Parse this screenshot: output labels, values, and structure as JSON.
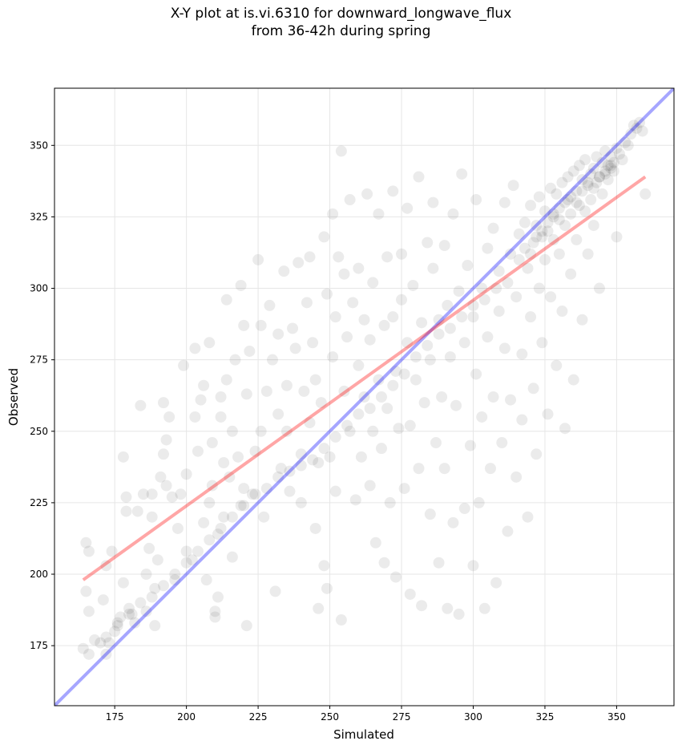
{
  "chart_data": {
    "type": "scatter",
    "title_lines": [
      "X-Y plot at is.vi.6310 for downward_longwave_flux",
      "from 36-42h during spring"
    ],
    "xlabel": "Simulated",
    "ylabel": "Observed",
    "xlim": [
      154,
      370
    ],
    "ylim": [
      154,
      370
    ],
    "xticks": [
      175,
      200,
      225,
      250,
      275,
      300,
      325,
      350
    ],
    "yticks": [
      175,
      200,
      225,
      250,
      275,
      300,
      325,
      350
    ],
    "grid": true,
    "point_color": "#000000",
    "point_alpha": 0.08,
    "reference_lines": [
      {
        "type": "one_to_one",
        "color": "#0000ff",
        "x": [
          154,
          370
        ],
        "y": [
          154,
          370
        ]
      },
      {
        "type": "regression_fit",
        "color": "#ff0000",
        "x": [
          164,
          360
        ],
        "y": [
          198,
          339
        ]
      }
    ],
    "points": [
      [
        164,
        174
      ],
      [
        165,
        211
      ],
      [
        166,
        208
      ],
      [
        165,
        194
      ],
      [
        166,
        187
      ],
      [
        166,
        172
      ],
      [
        168,
        177
      ],
      [
        170,
        176
      ],
      [
        172,
        172
      ],
      [
        173,
        176
      ],
      [
        171,
        191
      ],
      [
        172,
        203
      ],
      [
        174,
        208
      ],
      [
        175,
        180
      ],
      [
        176,
        183
      ],
      [
        177,
        185
      ],
      [
        178,
        197
      ],
      [
        178,
        241
      ],
      [
        179,
        227
      ],
      [
        179,
        222
      ],
      [
        180,
        188
      ],
      [
        181,
        186
      ],
      [
        182,
        183
      ],
      [
        183,
        222
      ],
      [
        184,
        259
      ],
      [
        185,
        228
      ],
      [
        186,
        200
      ],
      [
        186,
        187
      ],
      [
        187,
        209
      ],
      [
        188,
        220
      ],
      [
        188,
        228
      ],
      [
        189,
        195
      ],
      [
        189,
        182
      ],
      [
        190,
        205
      ],
      [
        191,
        234
      ],
      [
        192,
        260
      ],
      [
        192,
        242
      ],
      [
        193,
        231
      ],
      [
        193,
        247
      ],
      [
        194,
        255
      ],
      [
        195,
        227
      ],
      [
        196,
        198
      ],
      [
        197,
        216
      ],
      [
        198,
        228
      ],
      [
        199,
        273
      ],
      [
        200,
        208
      ],
      [
        200,
        235
      ],
      [
        202,
        205
      ],
      [
        203,
        255
      ],
      [
        204,
        243
      ],
      [
        203,
        279
      ],
      [
        205,
        261
      ],
      [
        206,
        266
      ],
      [
        206,
        218
      ],
      [
        207,
        198
      ],
      [
        208,
        225
      ],
      [
        208,
        281
      ],
      [
        209,
        246
      ],
      [
        209,
        231
      ],
      [
        210,
        187
      ],
      [
        210,
        185
      ],
      [
        211,
        192
      ],
      [
        211,
        214
      ],
      [
        212,
        262
      ],
      [
        212,
        255
      ],
      [
        213,
        239
      ],
      [
        213,
        220
      ],
      [
        214,
        268
      ],
      [
        214,
        296
      ],
      [
        215,
        234
      ],
      [
        216,
        250
      ],
      [
        216,
        206
      ],
      [
        217,
        275
      ],
      [
        218,
        241
      ],
      [
        219,
        301
      ],
      [
        219,
        224
      ],
      [
        220,
        287
      ],
      [
        220,
        230
      ],
      [
        221,
        263
      ],
      [
        221,
        182
      ],
      [
        222,
        278
      ],
      [
        223,
        228
      ],
      [
        224,
        243
      ],
      [
        225,
        310
      ],
      [
        226,
        287
      ],
      [
        226,
        250
      ],
      [
        227,
        220
      ],
      [
        228,
        264
      ],
      [
        229,
        294
      ],
      [
        230,
        275
      ],
      [
        231,
        194
      ],
      [
        232,
        256
      ],
      [
        232,
        284
      ],
      [
        233,
        237
      ],
      [
        234,
        306
      ],
      [
        235,
        250
      ],
      [
        235,
        266
      ],
      [
        236,
        229
      ],
      [
        237,
        286
      ],
      [
        238,
        279
      ],
      [
        239,
        309
      ],
      [
        240,
        242
      ],
      [
        240,
        225
      ],
      [
        241,
        264
      ],
      [
        242,
        295
      ],
      [
        243,
        311
      ],
      [
        243,
        253
      ],
      [
        244,
        281
      ],
      [
        245,
        216
      ],
      [
        245,
        268
      ],
      [
        246,
        239
      ],
      [
        246,
        188
      ],
      [
        247,
        260
      ],
      [
        248,
        318
      ],
      [
        248,
        203
      ],
      [
        249,
        298
      ],
      [
        249,
        195
      ],
      [
        250,
        241
      ],
      [
        251,
        326
      ],
      [
        251,
        276
      ],
      [
        252,
        290
      ],
      [
        252,
        229
      ],
      [
        253,
        311
      ],
      [
        254,
        348
      ],
      [
        254,
        184
      ],
      [
        255,
        305
      ],
      [
        255,
        264
      ],
      [
        256,
        283
      ],
      [
        257,
        250
      ],
      [
        257,
        331
      ],
      [
        258,
        295
      ],
      [
        259,
        226
      ],
      [
        260,
        273
      ],
      [
        260,
        307
      ],
      [
        261,
        241
      ],
      [
        262,
        289
      ],
      [
        262,
        262
      ],
      [
        263,
        333
      ],
      [
        264,
        231
      ],
      [
        264,
        282
      ],
      [
        265,
        250
      ],
      [
        265,
        302
      ],
      [
        266,
        211
      ],
      [
        267,
        326
      ],
      [
        267,
        268
      ],
      [
        268,
        244
      ],
      [
        269,
        287
      ],
      [
        269,
        204
      ],
      [
        270,
        258
      ],
      [
        270,
        311
      ],
      [
        271,
        225
      ],
      [
        272,
        290
      ],
      [
        272,
        334
      ],
      [
        273,
        199
      ],
      [
        273,
        271
      ],
      [
        274,
        251
      ],
      [
        275,
        296
      ],
      [
        275,
        312
      ],
      [
        276,
        230
      ],
      [
        277,
        281
      ],
      [
        277,
        328
      ],
      [
        278,
        193
      ],
      [
        278,
        252
      ],
      [
        279,
        301
      ],
      [
        280,
        268
      ],
      [
        281,
        237
      ],
      [
        281,
        339
      ],
      [
        282,
        288
      ],
      [
        282,
        189
      ],
      [
        283,
        260
      ],
      [
        284,
        316
      ],
      [
        285,
        275
      ],
      [
        285,
        221
      ],
      [
        286,
        307
      ],
      [
        286,
        330
      ],
      [
        287,
        246
      ],
      [
        288,
        289
      ],
      [
        288,
        204
      ],
      [
        289,
        262
      ],
      [
        290,
        237
      ],
      [
        290,
        315
      ],
      [
        291,
        294
      ],
      [
        291,
        188
      ],
      [
        292,
        276
      ],
      [
        293,
        326
      ],
      [
        293,
        218
      ],
      [
        294,
        259
      ],
      [
        295,
        299
      ],
      [
        295,
        186
      ],
      [
        296,
        340
      ],
      [
        297,
        281
      ],
      [
        297,
        223
      ],
      [
        298,
        308
      ],
      [
        299,
        245
      ],
      [
        300,
        290
      ],
      [
        300,
        203
      ],
      [
        301,
        331
      ],
      [
        301,
        270
      ],
      [
        302,
        225
      ],
      [
        303,
        300
      ],
      [
        303,
        255
      ],
      [
        304,
        188
      ],
      [
        305,
        314
      ],
      [
        305,
        283
      ],
      [
        306,
        237
      ],
      [
        307,
        321
      ],
      [
        307,
        262
      ],
      [
        308,
        197
      ],
      [
        309,
        306
      ],
      [
        309,
        292
      ],
      [
        310,
        246
      ],
      [
        311,
        330
      ],
      [
        311,
        279
      ],
      [
        312,
        215
      ],
      [
        313,
        312
      ],
      [
        313,
        261
      ],
      [
        314,
        336
      ],
      [
        315,
        297
      ],
      [
        315,
        234
      ],
      [
        316,
        319
      ],
      [
        317,
        277
      ],
      [
        317,
        254
      ],
      [
        318,
        323
      ],
      [
        319,
        307
      ],
      [
        319,
        220
      ],
      [
        320,
        290
      ],
      [
        320,
        329
      ],
      [
        321,
        316
      ],
      [
        321,
        265
      ],
      [
        322,
        322
      ],
      [
        322,
        242
      ],
      [
        323,
        332
      ],
      [
        323,
        300
      ],
      [
        324,
        318
      ],
      [
        324,
        281
      ],
      [
        325,
        327
      ],
      [
        325,
        310
      ],
      [
        326,
        256
      ],
      [
        326,
        320
      ],
      [
        327,
        335
      ],
      [
        327,
        297
      ],
      [
        328,
        325
      ],
      [
        328,
        317
      ],
      [
        329,
        333
      ],
      [
        329,
        273
      ],
      [
        330,
        328
      ],
      [
        330,
        312
      ],
      [
        331,
        337
      ],
      [
        331,
        292
      ],
      [
        332,
        322
      ],
      [
        332,
        251
      ],
      [
        333,
        339
      ],
      [
        333,
        331
      ],
      [
        334,
        326
      ],
      [
        334,
        305
      ],
      [
        335,
        341
      ],
      [
        335,
        268
      ],
      [
        336,
        334
      ],
      [
        336,
        317
      ],
      [
        337,
        343
      ],
      [
        337,
        329
      ],
      [
        338,
        289
      ],
      [
        338,
        338
      ],
      [
        339,
        327
      ],
      [
        339,
        345
      ],
      [
        340,
        336
      ],
      [
        340,
        312
      ],
      [
        341,
        340
      ],
      [
        341,
        331
      ],
      [
        342,
        342
      ],
      [
        342,
        322
      ],
      [
        343,
        346
      ],
      [
        343,
        337
      ],
      [
        344,
        339
      ],
      [
        344,
        300
      ],
      [
        345,
        344
      ],
      [
        345,
        333
      ],
      [
        346,
        348
      ],
      [
        346,
        341
      ],
      [
        347,
        343
      ],
      [
        347,
        338
      ],
      [
        348,
        346
      ],
      [
        348,
        342
      ],
      [
        349,
        341
      ],
      [
        349,
        344
      ],
      [
        350,
        318
      ],
      [
        350,
        349
      ],
      [
        351,
        347
      ],
      [
        352,
        345
      ],
      [
        353,
        351
      ],
      [
        354,
        350
      ],
      [
        355,
        354
      ],
      [
        356,
        357
      ],
      [
        357,
        356
      ],
      [
        358,
        358
      ],
      [
        359,
        355
      ],
      [
        360,
        333
      ],
      [
        318,
        314
      ],
      [
        322,
        318
      ],
      [
        324,
        320
      ],
      [
        326,
        323
      ],
      [
        328,
        326
      ],
      [
        330,
        324
      ],
      [
        332,
        330
      ],
      [
        334,
        332
      ],
      [
        336,
        330
      ],
      [
        338,
        334
      ],
      [
        340,
        337
      ],
      [
        342,
        335
      ],
      [
        344,
        339
      ],
      [
        346,
        340
      ],
      [
        348,
        343
      ],
      [
        320,
        312
      ],
      [
        316,
        310
      ],
      [
        312,
        302
      ],
      [
        308,
        300
      ],
      [
        304,
        296
      ],
      [
        300,
        294
      ],
      [
        296,
        290
      ],
      [
        292,
        286
      ],
      [
        288,
        284
      ],
      [
        284,
        280
      ],
      [
        280,
        276
      ],
      [
        276,
        270
      ],
      [
        272,
        266
      ],
      [
        268,
        262
      ],
      [
        264,
        258
      ],
      [
        260,
        256
      ],
      [
        256,
        252
      ],
      [
        252,
        248
      ],
      [
        248,
        244
      ],
      [
        244,
        240
      ],
      [
        240,
        238
      ],
      [
        236,
        236
      ],
      [
        232,
        234
      ],
      [
        228,
        230
      ],
      [
        224,
        228
      ],
      [
        220,
        224
      ],
      [
        216,
        220
      ],
      [
        212,
        216
      ],
      [
        208,
        212
      ],
      [
        204,
        208
      ],
      [
        200,
        204
      ],
      [
        196,
        200
      ],
      [
        192,
        196
      ],
      [
        188,
        192
      ],
      [
        184,
        190
      ],
      [
        180,
        186
      ],
      [
        176,
        182
      ],
      [
        172,
        178
      ]
    ]
  }
}
